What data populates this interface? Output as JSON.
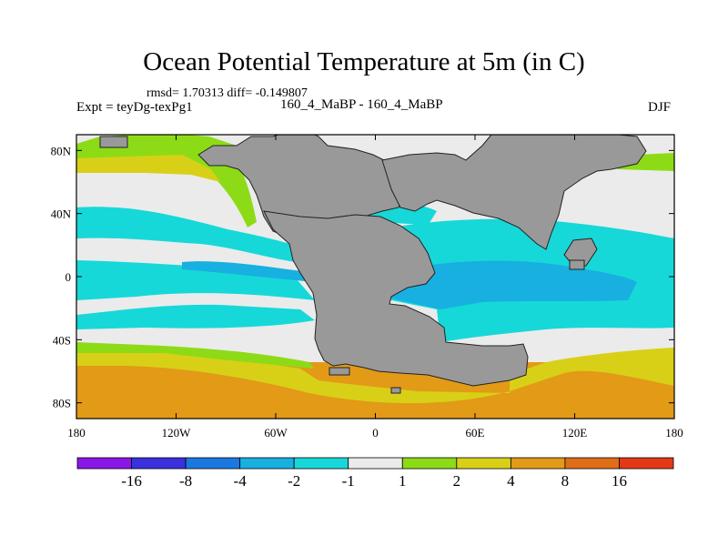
{
  "title": "Ocean Potential Temperature at 5m (in C)",
  "stats": "rmsd= 1.70313 diff= -0.149807",
  "experiment": "Expt = teyDg-texPg1",
  "subtitle": "160_4_MaBP - 160_4_MaBP",
  "season": "DJF",
  "map": {
    "lon_range": [
      -180,
      180
    ],
    "lat_range": [
      -90,
      90
    ],
    "land_color": "#999999",
    "x_ticks": [
      {
        "value": -180,
        "label": "180"
      },
      {
        "value": -120,
        "label": "120W"
      },
      {
        "value": -60,
        "label": "60W"
      },
      {
        "value": 0,
        "label": "0"
      },
      {
        "value": 60,
        "label": "60E"
      },
      {
        "value": 120,
        "label": "120E"
      },
      {
        "value": 180,
        "label": "180"
      }
    ],
    "y_ticks": [
      {
        "value": 80,
        "label": "80N"
      },
      {
        "value": 40,
        "label": "40N"
      },
      {
        "value": 0,
        "label": "0"
      },
      {
        "value": -40,
        "label": "40S"
      },
      {
        "value": -80,
        "label": "80S"
      }
    ]
  },
  "colorbar": {
    "colors": [
      "#8a17e6",
      "#3a30de",
      "#1a78e0",
      "#17b0e0",
      "#17d8d8",
      "#ebebeb",
      "#8ddb17",
      "#d8d017",
      "#e29a17",
      "#e06d17",
      "#e23a17"
    ],
    "labels": [
      "-16",
      "-8",
      "-4",
      "-2",
      "-1",
      "1",
      "2",
      "4",
      "8",
      "16"
    ]
  }
}
